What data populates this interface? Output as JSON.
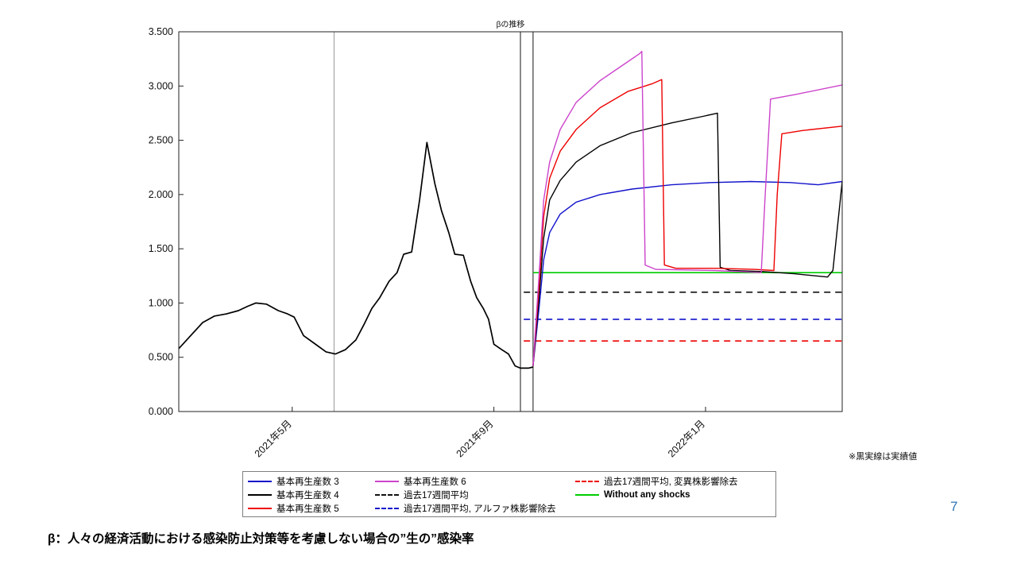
{
  "page": {
    "footnote": "※黒実線は実績値",
    "page_number": "7",
    "caption": "β：人々の経済活動における感染防止対策等を考慮しない場合の”生の”感染率"
  },
  "chart_data": {
    "type": "line",
    "title": "βの推移",
    "xlabel": "",
    "ylabel": "",
    "ylim": [
      0,
      3.5
    ],
    "ytick_values": [
      0,
      0.5,
      1,
      1.5,
      2,
      2.5,
      3,
      3.5
    ],
    "ytick_labels": [
      "0.000",
      "0.500",
      "1.000",
      "1.500",
      "2.000",
      "2.500",
      "3.000",
      "3.500"
    ],
    "xticks": [
      {
        "t": 17.1,
        "label": "2021年5月"
      },
      {
        "t": 47.5,
        "label": "2021年9月"
      },
      {
        "t": 79.4,
        "label": "2022年1月"
      }
    ],
    "vlines": [
      {
        "id": "vline-event",
        "t": 23.4,
        "color": "#8c8c8c",
        "w": 0.9
      },
      {
        "id": "vline-forecast-start-1",
        "t": 51.5,
        "color": "#4a4a4a",
        "w": 1.3
      },
      {
        "id": "vline-forecast-start-2",
        "t": 53.4,
        "color": "#4a4a4a",
        "w": 1.3
      }
    ],
    "hlines": [
      {
        "id": "hline-avg17w",
        "name": "過去17週間平均",
        "value": 1.1,
        "t0": 52.0,
        "t1": 100,
        "color": "#111111",
        "dash": true
      },
      {
        "id": "hline-avg17w-alpha-removed",
        "name": "過去17週間平均, アルファ株影響除去",
        "value": 0.85,
        "t0": 52.0,
        "t1": 100,
        "color": "#1212cc",
        "dash": true
      },
      {
        "id": "hline-avg17w-variant-removed",
        "name": "過去17週間平均, 変異株影響除去",
        "value": 0.65,
        "t0": 52.0,
        "t1": 100,
        "color": "#ee0000",
        "dash": true
      },
      {
        "id": "hline-without-shocks",
        "name": "Without any shocks",
        "value": 1.28,
        "t0": 53.4,
        "t1": 100,
        "color": "#00cc00",
        "dash": false
      }
    ],
    "series": [
      {
        "id": "series-actual",
        "name": "実績値",
        "color": "#000000",
        "width": 1.7,
        "points": [
          [
            0,
            0.58
          ],
          [
            1.8,
            0.7
          ],
          [
            3.6,
            0.82
          ],
          [
            5.4,
            0.88
          ],
          [
            7.2,
            0.9
          ],
          [
            9.0,
            0.93
          ],
          [
            10.4,
            0.97
          ],
          [
            11.6,
            1.0
          ],
          [
            13.2,
            0.99
          ],
          [
            15.0,
            0.93
          ],
          [
            16.4,
            0.9
          ],
          [
            17.4,
            0.87
          ],
          [
            18.8,
            0.7
          ],
          [
            20.4,
            0.63
          ],
          [
            22.2,
            0.55
          ],
          [
            23.6,
            0.53
          ],
          [
            25.1,
            0.57
          ],
          [
            26.7,
            0.66
          ],
          [
            27.9,
            0.8
          ],
          [
            29.1,
            0.95
          ],
          [
            30.3,
            1.05
          ],
          [
            31.7,
            1.2
          ],
          [
            32.9,
            1.28
          ],
          [
            33.9,
            1.45
          ],
          [
            35.1,
            1.47
          ],
          [
            36.3,
            1.95
          ],
          [
            37.4,
            2.48
          ],
          [
            38.6,
            2.1
          ],
          [
            39.6,
            1.85
          ],
          [
            40.7,
            1.65
          ],
          [
            41.6,
            1.45
          ],
          [
            42.9,
            1.44
          ],
          [
            44.0,
            1.2
          ],
          [
            44.9,
            1.05
          ],
          [
            45.9,
            0.95
          ],
          [
            46.7,
            0.85
          ],
          [
            47.5,
            0.62
          ],
          [
            48.7,
            0.57
          ],
          [
            49.7,
            0.53
          ],
          [
            50.7,
            0.42
          ],
          [
            51.5,
            0.4
          ],
          [
            52.7,
            0.4
          ],
          [
            53.4,
            0.41
          ]
        ]
      },
      {
        "id": "series-r0-3",
        "name": "基本再生産数 3",
        "color": "#1212cc",
        "width": 1.4,
        "points": [
          [
            53.4,
            0.42
          ],
          [
            54.3,
            0.95
          ],
          [
            55.0,
            1.4
          ],
          [
            55.9,
            1.65
          ],
          [
            57.5,
            1.82
          ],
          [
            59.9,
            1.93
          ],
          [
            63.5,
            2.0
          ],
          [
            68.3,
            2.05
          ],
          [
            74.3,
            2.09
          ],
          [
            80.2,
            2.11
          ],
          [
            86.2,
            2.12
          ],
          [
            92.2,
            2.11
          ],
          [
            96.4,
            2.09
          ],
          [
            100,
            2.12
          ]
        ]
      },
      {
        "id": "series-r0-4",
        "name": "基本再生産数 4",
        "color": "#000000",
        "width": 1.4,
        "points": [
          [
            53.4,
            0.42
          ],
          [
            54.3,
            1.05
          ],
          [
            55.0,
            1.6
          ],
          [
            55.9,
            1.95
          ],
          [
            57.5,
            2.13
          ],
          [
            59.9,
            2.3
          ],
          [
            63.5,
            2.45
          ],
          [
            68.3,
            2.57
          ],
          [
            74.3,
            2.66
          ],
          [
            79.0,
            2.72
          ],
          [
            81.2,
            2.75
          ],
          [
            81.6,
            1.33
          ],
          [
            83.2,
            1.3
          ],
          [
            88.0,
            1.29
          ],
          [
            92.8,
            1.27
          ],
          [
            97.8,
            1.24
          ],
          [
            98.6,
            1.3
          ],
          [
            100,
            2.12
          ]
        ]
      },
      {
        "id": "series-r0-5",
        "name": "基本再生産数 5",
        "color": "#ee0000",
        "width": 1.4,
        "points": [
          [
            53.4,
            0.42
          ],
          [
            54.3,
            1.15
          ],
          [
            55.0,
            1.8
          ],
          [
            55.9,
            2.15
          ],
          [
            57.5,
            2.4
          ],
          [
            59.9,
            2.6
          ],
          [
            63.5,
            2.8
          ],
          [
            67.7,
            2.95
          ],
          [
            71.3,
            3.02
          ],
          [
            72.8,
            3.06
          ],
          [
            73.2,
            1.35
          ],
          [
            74.9,
            1.32
          ],
          [
            80.8,
            1.32
          ],
          [
            86.8,
            1.31
          ],
          [
            89.7,
            1.3
          ],
          [
            90.2,
            2.0
          ],
          [
            90.9,
            2.56
          ],
          [
            94.0,
            2.59
          ],
          [
            100,
            2.63
          ]
        ]
      },
      {
        "id": "series-r0-6",
        "name": "基本再生産数 6",
        "color": "#cc44cc",
        "width": 1.4,
        "points": [
          [
            53.4,
            0.42
          ],
          [
            54.3,
            1.25
          ],
          [
            55.0,
            1.95
          ],
          [
            55.9,
            2.3
          ],
          [
            57.5,
            2.6
          ],
          [
            59.9,
            2.85
          ],
          [
            63.5,
            3.05
          ],
          [
            67.1,
            3.2
          ],
          [
            69.5,
            3.3
          ],
          [
            69.8,
            3.32
          ],
          [
            70.3,
            1.35
          ],
          [
            71.9,
            1.31
          ],
          [
            80.8,
            1.3
          ],
          [
            87.8,
            1.28
          ],
          [
            88.4,
            2.0
          ],
          [
            89.2,
            2.88
          ],
          [
            92.8,
            2.92
          ],
          [
            100,
            3.01
          ]
        ]
      }
    ]
  },
  "legend": {
    "columns": [
      [
        {
          "label": "基本再生産数 3",
          "color": "#1212cc",
          "dash": false,
          "bold": false
        },
        {
          "label": "基本再生産数 4",
          "color": "#000000",
          "dash": false,
          "bold": false
        },
        {
          "label": "基本再生産数 5",
          "color": "#ee0000",
          "dash": false,
          "bold": false
        }
      ],
      [
        {
          "label": "基本再生産数 6",
          "color": "#cc44cc",
          "dash": false,
          "bold": false
        },
        {
          "label": "過去17週間平均",
          "color": "#111111",
          "dash": true,
          "bold": false
        },
        {
          "label": "過去17週間平均, アルファ株影響除去",
          "color": "#1212cc",
          "dash": true,
          "bold": false
        }
      ],
      [
        {
          "label": "過去17週間平均, 変異株影響除去",
          "color": "#ee0000",
          "dash": true,
          "bold": false
        },
        {
          "label": "Without any shocks",
          "color": "#00cc00",
          "dash": false,
          "bold": true
        }
      ]
    ]
  }
}
